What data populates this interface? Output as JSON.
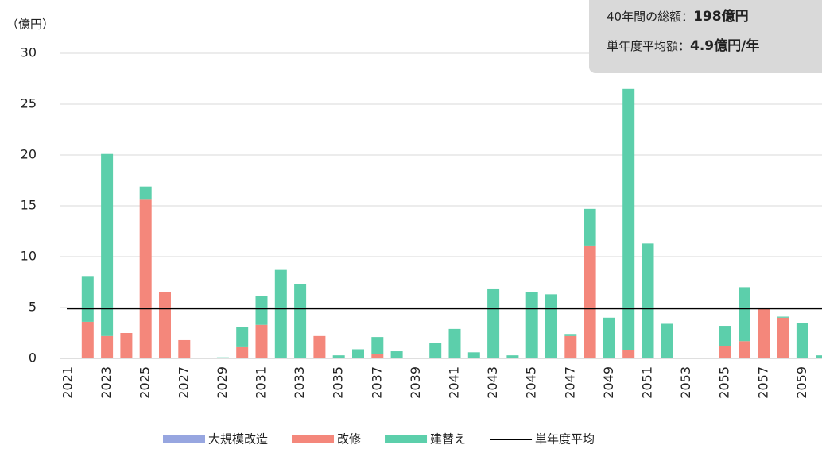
{
  "chart_data": {
    "type": "stacked_bar",
    "y_unit": "（億円）",
    "categories": [
      "2021",
      null,
      "2023",
      null,
      "2025",
      null,
      "2027",
      null,
      "2029",
      null,
      "2031",
      null,
      "2033",
      null,
      "2035",
      null,
      "2037",
      null,
      "2039",
      null,
      "2041",
      null,
      "2043",
      null,
      "2045",
      null,
      "2047",
      null,
      "2049",
      null,
      "2051",
      null,
      "2053",
      null,
      "2055",
      null,
      "2057",
      null,
      "2059",
      null
    ],
    "series": [
      {
        "name": "大規模改造",
        "color": "#97a6e0",
        "values": [
          0,
          0,
          0,
          0,
          0,
          0,
          0,
          0,
          0,
          0,
          0,
          0,
          0,
          0,
          0,
          0,
          0,
          0,
          0,
          0,
          0,
          0,
          0,
          0,
          0,
          0,
          0,
          0,
          0,
          0,
          0,
          0,
          0,
          0,
          0,
          0,
          0,
          0,
          0,
          0
        ]
      },
      {
        "name": "改修",
        "color": "#f4877b",
        "values": [
          0,
          3.6,
          2.2,
          2.5,
          15.6,
          6.5,
          1.8,
          0,
          0,
          1.1,
          3.3,
          0,
          0,
          2.2,
          0,
          0,
          0.4,
          0,
          0,
          0,
          0,
          0,
          0,
          0,
          0,
          0,
          2.2,
          11.1,
          0,
          0.8,
          0,
          0,
          0,
          0,
          1.2,
          1.7,
          4.9,
          4.0,
          0,
          0
        ]
      },
      {
        "name": "建替え",
        "color": "#5ccfab",
        "values": [
          0,
          4.5,
          17.9,
          0,
          1.3,
          0,
          0,
          0,
          0.1,
          2.0,
          2.8,
          8.7,
          7.3,
          0,
          0.3,
          0.9,
          1.7,
          0.7,
          0,
          1.5,
          2.9,
          0.6,
          6.8,
          0.3,
          6.5,
          6.3,
          0.2,
          3.6,
          4.0,
          25.7,
          11.3,
          3.4,
          0,
          0,
          2.0,
          5.3,
          0,
          0.1,
          3.5,
          0.3
        ]
      }
    ],
    "average_line": {
      "name": "単年度平均",
      "value": 4.9,
      "color": "#000000"
    },
    "ylim": [
      0,
      30
    ],
    "yticks": [
      0,
      5,
      10,
      15,
      20,
      25,
      30
    ],
    "grid": true,
    "summary": {
      "total_label": "40年間の総額：",
      "total_value": "198億円",
      "avg_label": "単年度平均額：",
      "avg_value": "4.9億円",
      "avg_suffix": "/年"
    }
  }
}
